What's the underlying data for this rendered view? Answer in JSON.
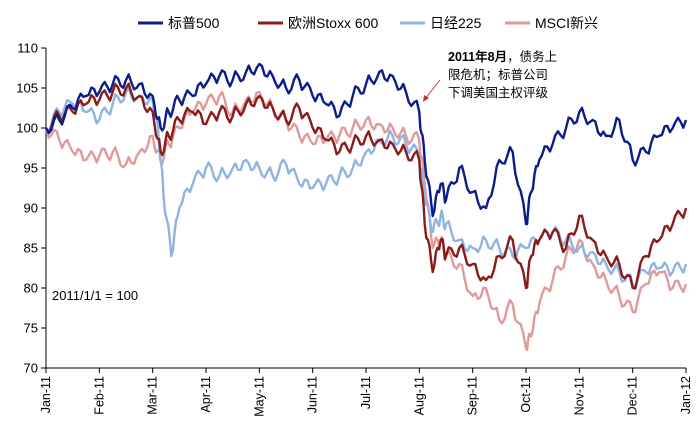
{
  "chart_data": {
    "type": "line",
    "title": "",
    "xlabel": "",
    "ylabel": "",
    "ylim": [
      70,
      110
    ],
    "yticks": [
      70,
      75,
      80,
      85,
      90,
      95,
      100,
      105,
      110
    ],
    "xticks": [
      "Jan-11",
      "Feb-11",
      "Mar-11",
      "Apr-11",
      "May-11",
      "Jun-11",
      "Jul-11",
      "Aug-11",
      "Sep-11",
      "Oct-11",
      "Nov-11",
      "Dec-11",
      "Jan-12"
    ],
    "x_range": [
      0,
      12
    ],
    "grid": false,
    "legend_position": "top",
    "annotation": {
      "bold_text": "2011年8月",
      "text_line1_suffix": "，债务上",
      "text_line2": "限危机；标普公司",
      "text_line3": "下调美国主权评级",
      "arrow_target": "Aug-11"
    },
    "base_label": "2011/1/1 = 100",
    "series": [
      {
        "name": "标普500",
        "color": "#0b1c8c",
        "x": [
          0,
          0.25,
          0.5,
          0.75,
          1,
          1.25,
          1.5,
          1.75,
          2,
          2.15,
          2.3,
          2.5,
          2.75,
          3,
          3.25,
          3.5,
          3.75,
          4,
          4.25,
          4.5,
          4.75,
          5,
          5.25,
          5.5,
          5.75,
          6,
          6.25,
          6.5,
          6.75,
          7,
          7.1,
          7.25,
          7.4,
          7.5,
          7.75,
          8,
          8.25,
          8.5,
          8.75,
          9,
          9.1,
          9.25,
          9.5,
          9.75,
          10,
          10.25,
          10.5,
          10.75,
          11,
          11.25,
          11.5,
          11.75,
          12
        ],
        "values": [
          100,
          101,
          102.5,
          104,
          104.5,
          105.5,
          106,
          105.5,
          104,
          100,
          102,
          103.5,
          104,
          105.5,
          106.5,
          106,
          107,
          108,
          106.5,
          105,
          106,
          104,
          103,
          101.5,
          104,
          105.5,
          107,
          106.5,
          104.5,
          102,
          96,
          89,
          93,
          91,
          95,
          92,
          90,
          96,
          97,
          88,
          92,
          96,
          98,
          100,
          102,
          101,
          99,
          101,
          96,
          97,
          99,
          100,
          101
        ]
      },
      {
        "name": "欧洲Stoxx 600",
        "color": "#8b1a1a",
        "x": [
          0,
          0.25,
          0.5,
          0.75,
          1,
          1.25,
          1.5,
          1.75,
          2,
          2.15,
          2.3,
          2.5,
          2.75,
          3,
          3.25,
          3.5,
          3.75,
          4,
          4.25,
          4.5,
          4.75,
          5,
          5.25,
          5.5,
          5.75,
          6,
          6.25,
          6.5,
          6.75,
          7,
          7.1,
          7.25,
          7.4,
          7.5,
          7.75,
          8,
          8.25,
          8.5,
          8.75,
          9,
          9.1,
          9.25,
          9.5,
          9.75,
          10,
          10.25,
          10.5,
          10.75,
          11,
          11.25,
          11.5,
          11.75,
          12
        ],
        "values": [
          100,
          101.5,
          102,
          103,
          103.5,
          104.5,
          105,
          104,
          102,
          97,
          99,
          101,
          102,
          100.5,
          102,
          101.5,
          103,
          104,
          102.5,
          101,
          102.5,
          100,
          98.5,
          97,
          98,
          99,
          98.5,
          98,
          97,
          96,
          88,
          82,
          86,
          84,
          85,
          83,
          81,
          84,
          86,
          80,
          84,
          86,
          87,
          85,
          89,
          86,
          84,
          83,
          80,
          84,
          86,
          88,
          90
        ]
      },
      {
        "name": "日经225",
        "color": "#8fb4e3",
        "x": [
          0,
          0.25,
          0.5,
          0.75,
          1,
          1.25,
          1.5,
          1.75,
          2,
          2.1,
          2.2,
          2.35,
          2.5,
          2.75,
          3,
          3.25,
          3.5,
          3.75,
          4,
          4.25,
          4.5,
          4.75,
          5,
          5.25,
          5.5,
          5.75,
          6,
          6.25,
          6.5,
          6.75,
          7,
          7.1,
          7.25,
          7.4,
          7.5,
          7.75,
          8,
          8.25,
          8.5,
          8.75,
          9,
          9.25,
          9.5,
          9.75,
          10,
          10.25,
          10.5,
          10.75,
          11,
          11.25,
          11.5,
          11.75,
          12
        ],
        "values": [
          100,
          102,
          103,
          102,
          101,
          103,
          104.5,
          104,
          103.5,
          100,
          92,
          84,
          90,
          93,
          95,
          94,
          95,
          96,
          95,
          94,
          95.5,
          93,
          92.5,
          93,
          94,
          95,
          97,
          98.5,
          99,
          98,
          96.5,
          91,
          87,
          89,
          88,
          86,
          85,
          86,
          85,
          84,
          85,
          86,
          87,
          86,
          85,
          84.5,
          83,
          82,
          80.5,
          82,
          82.5,
          82,
          83
        ]
      },
      {
        "name": "MSCI新兴",
        "color": "#e09a9a",
        "x": [
          0,
          0.25,
          0.5,
          0.75,
          1,
          1.25,
          1.5,
          1.75,
          2,
          2.15,
          2.3,
          2.5,
          2.75,
          3,
          3.25,
          3.5,
          3.75,
          4,
          4.25,
          4.5,
          4.75,
          5,
          5.25,
          5.5,
          5.75,
          6,
          6.25,
          6.5,
          6.75,
          7,
          7.1,
          7.25,
          7.4,
          7.5,
          7.75,
          8,
          8.25,
          8.5,
          8.75,
          9,
          9.1,
          9.25,
          9.5,
          9.75,
          10,
          10.25,
          10.5,
          10.75,
          11,
          11.25,
          11.5,
          11.75,
          12
        ],
        "values": [
          100,
          98.5,
          97,
          96,
          96.5,
          97,
          95.5,
          97,
          99,
          96,
          98,
          100,
          102,
          103,
          104,
          102,
          103.5,
          104.5,
          102.5,
          101,
          99,
          98,
          98.5,
          99,
          100,
          101,
          100.5,
          100,
          99,
          98.5,
          93,
          85,
          86,
          84,
          83,
          79,
          80,
          76,
          78,
          72.5,
          74,
          78,
          81,
          84,
          86,
          83,
          81,
          79,
          77,
          80.5,
          82,
          80,
          80.5
        ]
      }
    ]
  }
}
